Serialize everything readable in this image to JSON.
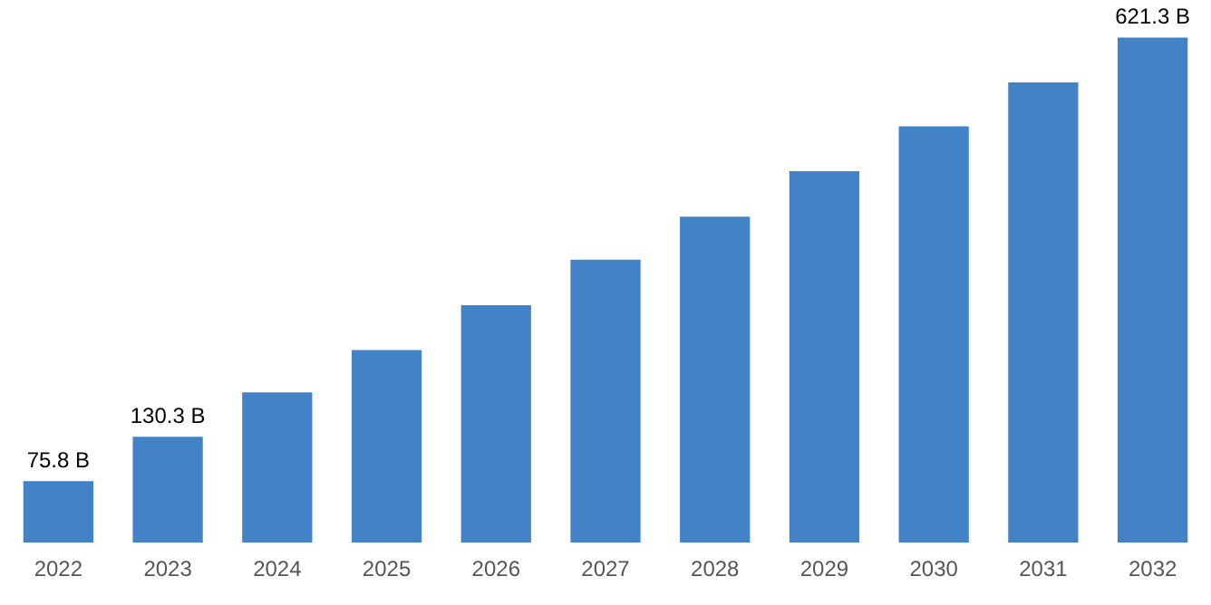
{
  "chart_data": {
    "type": "bar",
    "categories": [
      "2022",
      "2023",
      "2024",
      "2025",
      "2026",
      "2027",
      "2028",
      "2029",
      "2030",
      "2031",
      "2032"
    ],
    "values": [
      75.8,
      130.3,
      185,
      237,
      292,
      348,
      401,
      457,
      512,
      566,
      621.3
    ],
    "value_labels": [
      "75.8 B",
      "130.3 B",
      null,
      null,
      null,
      null,
      null,
      null,
      null,
      null,
      "621.3 B"
    ],
    "color": "#4282c6",
    "grid": false,
    "legend": false
  }
}
